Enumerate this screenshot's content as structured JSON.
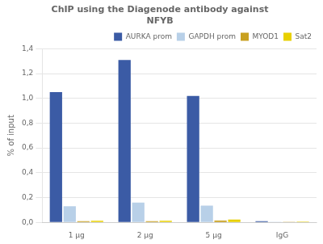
{
  "chart_data": {
    "type": "bar",
    "title": "ChIP using the Diagenode antibody against\nNFYB",
    "ylabel": "% of input",
    "categories": [
      "1 μg",
      "2 μg",
      "5 μg",
      "IgG"
    ],
    "series": [
      {
        "name": "AURKA prom",
        "color": "#3B5BA5",
        "values": [
          1.05,
          1.31,
          1.02,
          0.01
        ]
      },
      {
        "name": "GAPDH prom",
        "color": "#B8D0E8",
        "values": [
          0.13,
          0.16,
          0.135,
          0.005
        ]
      },
      {
        "name": "MYOD1",
        "color": "#C8A020",
        "values": [
          0.01,
          0.01,
          0.015,
          0.004
        ]
      },
      {
        "name": "Sat2",
        "color": "#E8D000",
        "values": [
          0.012,
          0.013,
          0.022,
          0.006
        ]
      }
    ],
    "ylim": [
      0,
      1.4
    ],
    "yticks": [
      {
        "value": 0.0,
        "label": "0,0"
      },
      {
        "value": 0.2,
        "label": "0,2"
      },
      {
        "value": 0.4,
        "label": "0,4"
      },
      {
        "value": 0.6,
        "label": "0,6"
      },
      {
        "value": 0.8,
        "label": "0,8"
      },
      {
        "value": 1.0,
        "label": "1,0"
      },
      {
        "value": 1.2,
        "label": "1,2"
      },
      {
        "value": 1.4,
        "label": "1,4"
      }
    ],
    "grid": true,
    "legend": "upper right"
  }
}
